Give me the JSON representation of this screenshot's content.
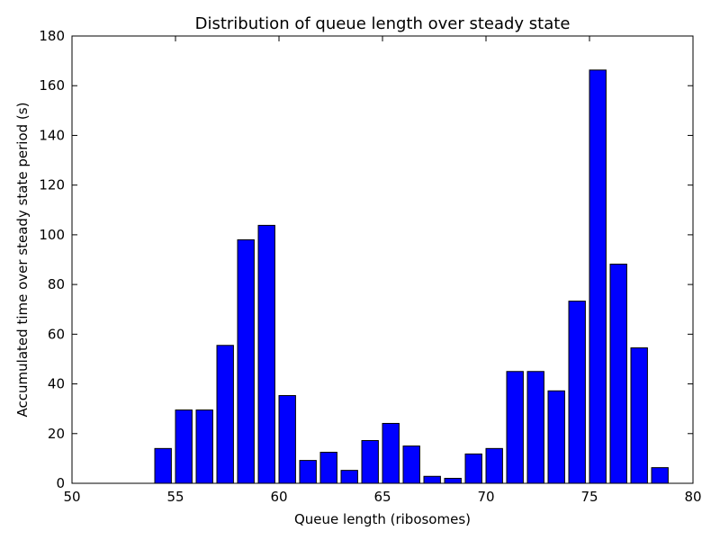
{
  "chart_data": {
    "type": "bar",
    "title": "Distribution of queue length over steady state",
    "xlabel": "Queue length (ribosomes)",
    "ylabel": "Accumulated time over steady state period (s)",
    "xlim": [
      50,
      80
    ],
    "ylim": [
      0,
      180
    ],
    "xticks": [
      50,
      55,
      60,
      65,
      70,
      75,
      80
    ],
    "yticks": [
      0,
      20,
      40,
      60,
      80,
      100,
      120,
      140,
      160,
      180
    ],
    "bar_color": "#0000ff",
    "bar_width": 0.8,
    "grid": false,
    "x": [
      54,
      55,
      56,
      57,
      58,
      59,
      60,
      61,
      62,
      63,
      64,
      65,
      66,
      67,
      68,
      69,
      70,
      71,
      72,
      73,
      74,
      75,
      76,
      77,
      78
    ],
    "values": [
      14,
      29.5,
      29.5,
      55.5,
      98,
      103.8,
      35.3,
      9.2,
      12.5,
      5.2,
      17.2,
      24.1,
      15,
      2.8,
      2,
      11.8,
      14,
      45,
      45,
      37.2,
      73.3,
      166.3,
      88.2,
      54.5,
      6.3
    ]
  }
}
